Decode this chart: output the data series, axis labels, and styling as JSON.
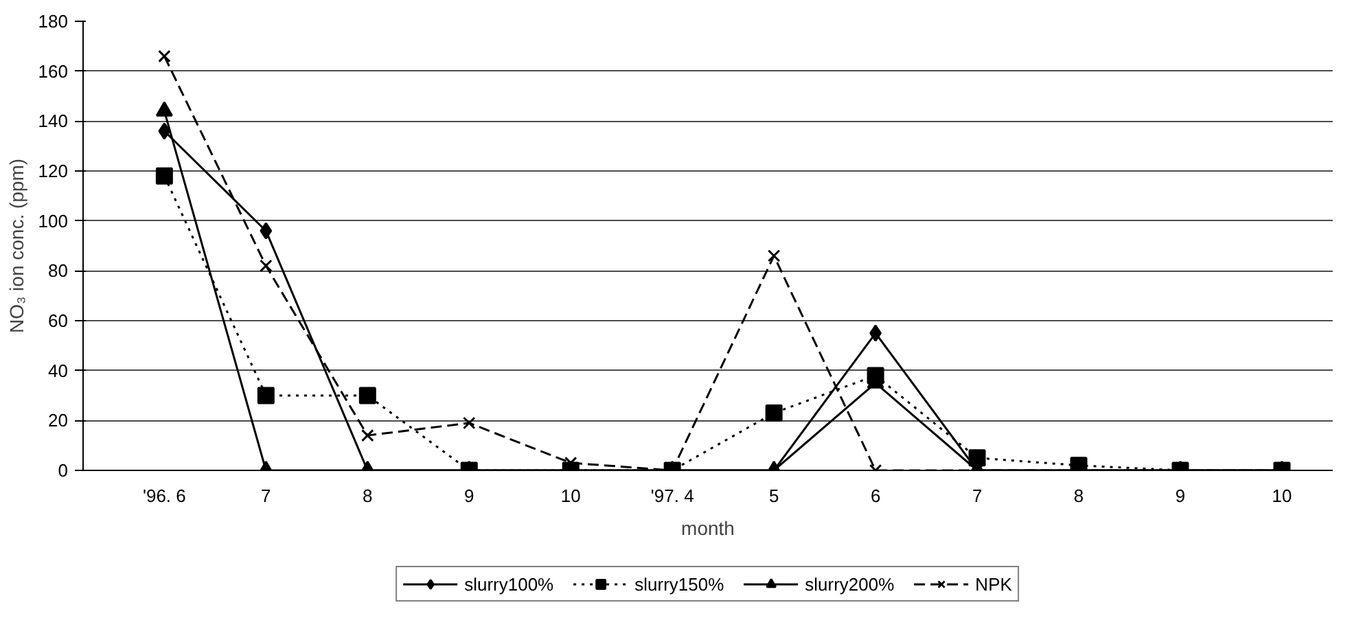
{
  "chart_data": {
    "type": "line",
    "xlabel": "month",
    "ylabel": "NO₃ ion conc. (ppm)",
    "categories": [
      "'96. 6",
      "7",
      "8",
      "9",
      "10",
      "'97. 4",
      "5",
      "6",
      "7",
      "8",
      "9",
      "10"
    ],
    "ylim": [
      0,
      180
    ],
    "yticks": [
      0,
      20,
      40,
      60,
      80,
      100,
      120,
      140,
      160,
      180
    ],
    "grid": "y",
    "legend": "bottom",
    "series": [
      {
        "name": "slurry100%",
        "color": "#000000",
        "marker": "diamond",
        "line_style": "solid",
        "values": [
          136,
          96,
          0,
          0,
          0,
          0,
          0,
          55,
          0,
          0,
          0,
          0
        ]
      },
      {
        "name": "slurry150%",
        "color": "#000000",
        "marker": "square",
        "line_style": "dotted",
        "values": [
          118,
          30,
          30,
          0,
          0,
          0,
          23,
          38,
          5,
          2,
          0,
          0
        ]
      },
      {
        "name": "slurry200%",
        "color": "#000000",
        "marker": "triangle",
        "line_style": "solid",
        "values": [
          144,
          0,
          0,
          0,
          0,
          0,
          0,
          35,
          0,
          0,
          0,
          0
        ]
      },
      {
        "name": "NPK",
        "color": "#000000",
        "marker": "cross",
        "line_style": "dashed",
        "values": [
          166,
          82,
          14,
          19,
          3,
          0,
          86,
          0,
          0,
          0,
          0,
          0
        ]
      }
    ]
  }
}
